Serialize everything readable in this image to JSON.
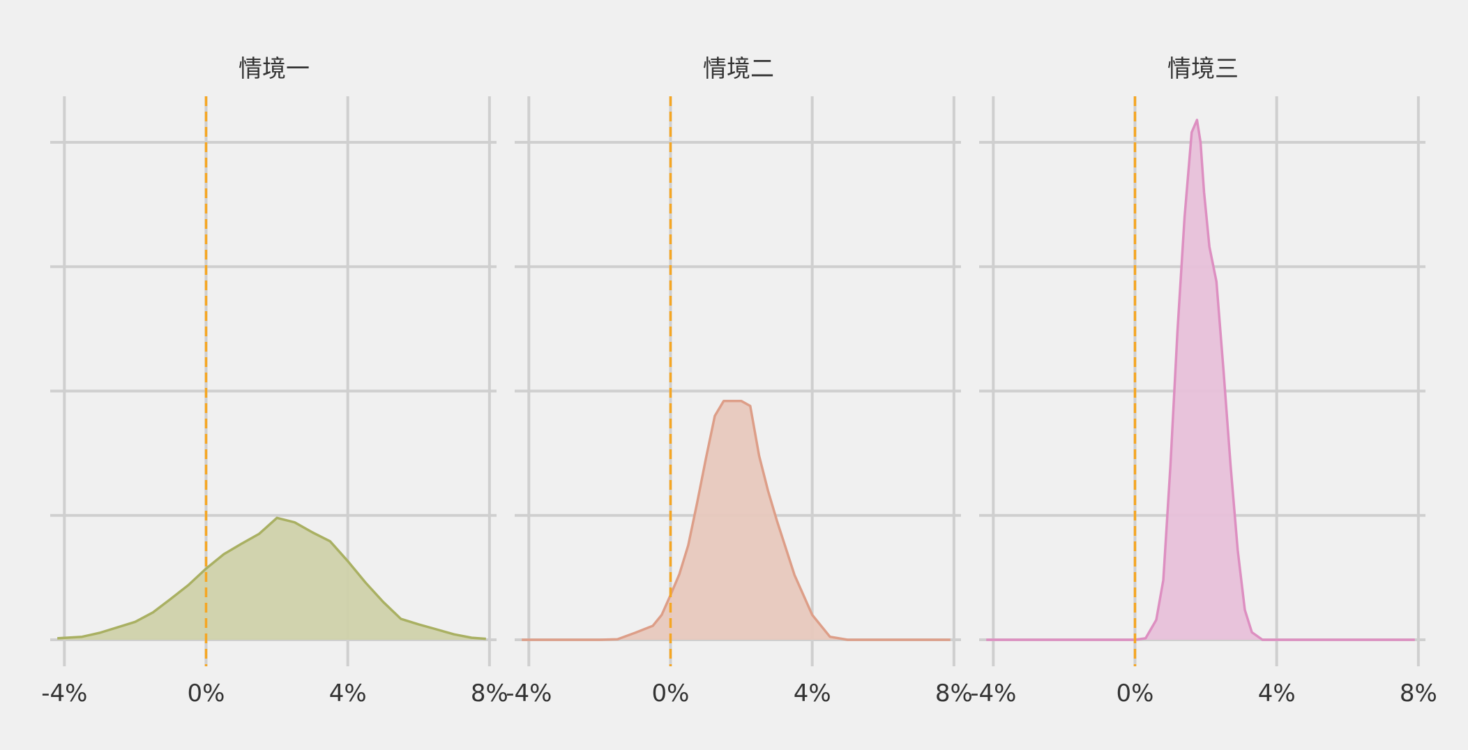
{
  "chart_data": [
    {
      "type": "area",
      "title": "情境一",
      "color": "#a9b062",
      "fill": "#cfd1aa",
      "xlim": [
        -4.4,
        8.2
      ],
      "ylim": [
        0,
        1.1
      ],
      "xticks": [
        -4,
        0,
        4,
        8
      ],
      "xtick_labels": [
        "-4%",
        "0%",
        "4%",
        "8%"
      ],
      "yticks": [
        0,
        0.25,
        0.5,
        0.75,
        1.0
      ],
      "reference_line": {
        "x": 0,
        "color": "#f5a623",
        "style": "dashed"
      },
      "x": [
        -4.2,
        -3.5,
        -3.0,
        -2.5,
        -2.0,
        -1.5,
        -1.0,
        -0.5,
        0.0,
        0.5,
        1.0,
        1.5,
        2.0,
        2.5,
        3.0,
        3.5,
        4.0,
        4.5,
        5.0,
        5.5,
        6.0,
        6.5,
        7.0,
        7.5,
        7.9
      ],
      "y": [
        0.003,
        0.006,
        0.014,
        0.025,
        0.036,
        0.055,
        0.082,
        0.11,
        0.143,
        0.172,
        0.193,
        0.213,
        0.245,
        0.236,
        0.216,
        0.198,
        0.158,
        0.115,
        0.076,
        0.042,
        0.031,
        0.021,
        0.011,
        0.004,
        0.002
      ]
    },
    {
      "type": "area",
      "title": "情境二",
      "color": "#dd9e88",
      "fill": "#e7c8bd",
      "xlim": [
        -4.4,
        8.2
      ],
      "ylim": [
        0,
        1.1
      ],
      "xticks": [
        -4,
        0,
        4,
        8
      ],
      "xtick_labels": [
        "-4%",
        "0%",
        "4%",
        "8%"
      ],
      "yticks": [
        0,
        0.25,
        0.5,
        0.75,
        1.0
      ],
      "reference_line": {
        "x": 0,
        "color": "#f5a623",
        "style": "dashed"
      },
      "x": [
        -4.2,
        -3.0,
        -2.0,
        -1.5,
        -1.0,
        -0.5,
        -0.25,
        0.0,
        0.25,
        0.5,
        0.75,
        1.0,
        1.25,
        1.5,
        1.7,
        2.0,
        2.25,
        2.5,
        2.75,
        3.0,
        3.5,
        4.0,
        4.5,
        5.0,
        5.5,
        6.0,
        7.0,
        7.9
      ],
      "y": [
        0.0,
        0.0,
        0.0,
        0.001,
        0.014,
        0.028,
        0.05,
        0.09,
        0.132,
        0.19,
        0.275,
        0.365,
        0.45,
        0.48,
        0.48,
        0.48,
        0.47,
        0.37,
        0.3,
        0.24,
        0.13,
        0.05,
        0.006,
        0.0,
        0.0,
        0.0,
        0.0,
        0.0
      ]
    },
    {
      "type": "area",
      "title": "情境三",
      "color": "#dd8fc1",
      "fill": "#e7c0d9",
      "xlim": [
        -4.4,
        8.2
      ],
      "ylim": [
        0,
        1.1
      ],
      "xticks": [
        -4,
        0,
        4,
        8
      ],
      "xtick_labels": [
        "-4%",
        "0%",
        "4%",
        "8%"
      ],
      "yticks": [
        0,
        0.25,
        0.5,
        0.75,
        1.0
      ],
      "reference_line": {
        "x": 0,
        "color": "#f5a623",
        "style": "dashed"
      },
      "x": [
        -4.2,
        -1.0,
        0.0,
        0.3,
        0.6,
        0.8,
        1.0,
        1.2,
        1.4,
        1.6,
        1.75,
        1.85,
        1.95,
        2.1,
        2.3,
        2.5,
        2.7,
        2.9,
        3.1,
        3.3,
        3.6,
        4.0,
        6.0,
        7.9
      ],
      "y": [
        0.0,
        0.0,
        0.0,
        0.003,
        0.04,
        0.12,
        0.35,
        0.62,
        0.85,
        1.02,
        1.045,
        1.0,
        0.9,
        0.79,
        0.72,
        0.54,
        0.35,
        0.18,
        0.06,
        0.015,
        0.0,
        0.0,
        0.0,
        0.0
      ]
    }
  ]
}
